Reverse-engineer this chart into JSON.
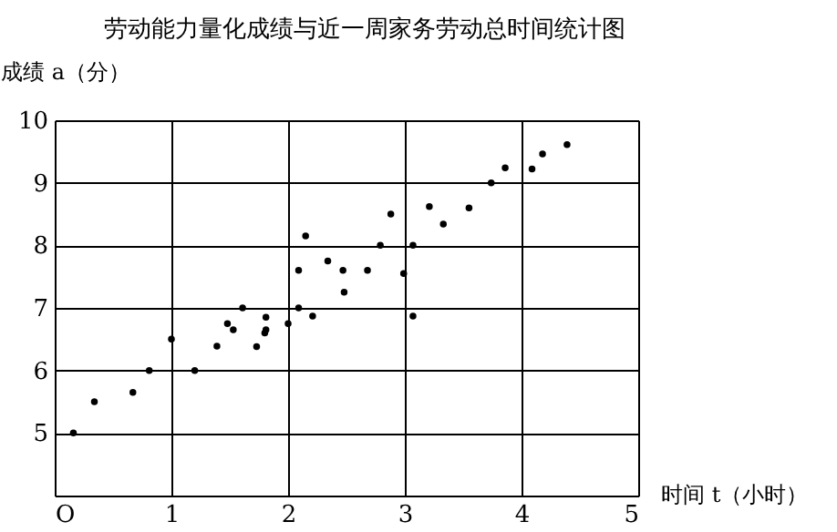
{
  "chart_data": {
    "type": "scatter",
    "title": "劳动能力量化成绩与近一周家务劳动总时间统计图",
    "xlabel": "时间 t（小时）",
    "ylabel": "成绩 a（分）",
    "x": [
      0.16,
      0.34,
      0.67,
      0.81,
      1.0,
      1.2,
      1.39,
      1.48,
      1.53,
      1.61,
      1.73,
      1.8,
      1.81,
      1.81,
      2.0,
      2.09,
      2.09,
      2.15,
      2.21,
      2.34,
      2.47,
      2.48,
      2.68,
      2.79,
      2.88,
      2.99,
      3.07,
      3.07,
      3.21,
      3.33,
      3.55,
      3.74,
      3.86,
      4.09,
      4.18,
      4.39
    ],
    "values": [
      5.0,
      5.5,
      5.65,
      6.0,
      6.5,
      6.0,
      6.39,
      6.75,
      6.65,
      7.0,
      6.38,
      6.6,
      6.85,
      6.65,
      6.75,
      7.6,
      7.0,
      8.15,
      6.87,
      7.75,
      7.6,
      7.25,
      7.6,
      8.0,
      8.5,
      7.55,
      8.0,
      6.87,
      8.62,
      8.34,
      8.6,
      9.0,
      9.24,
      9.22,
      9.46,
      9.61
    ],
    "color": "#000000",
    "marker": "circle",
    "grid": true,
    "xlim": [
      0,
      5
    ],
    "xticks": [
      {
        "value": 0,
        "label": "O"
      },
      1,
      2,
      3,
      4,
      5
    ],
    "ylim": [
      4,
      10
    ],
    "yticks": [
      {
        "value": 4,
        "label": null
      },
      5,
      6,
      7,
      8,
      9,
      10
    ]
  }
}
